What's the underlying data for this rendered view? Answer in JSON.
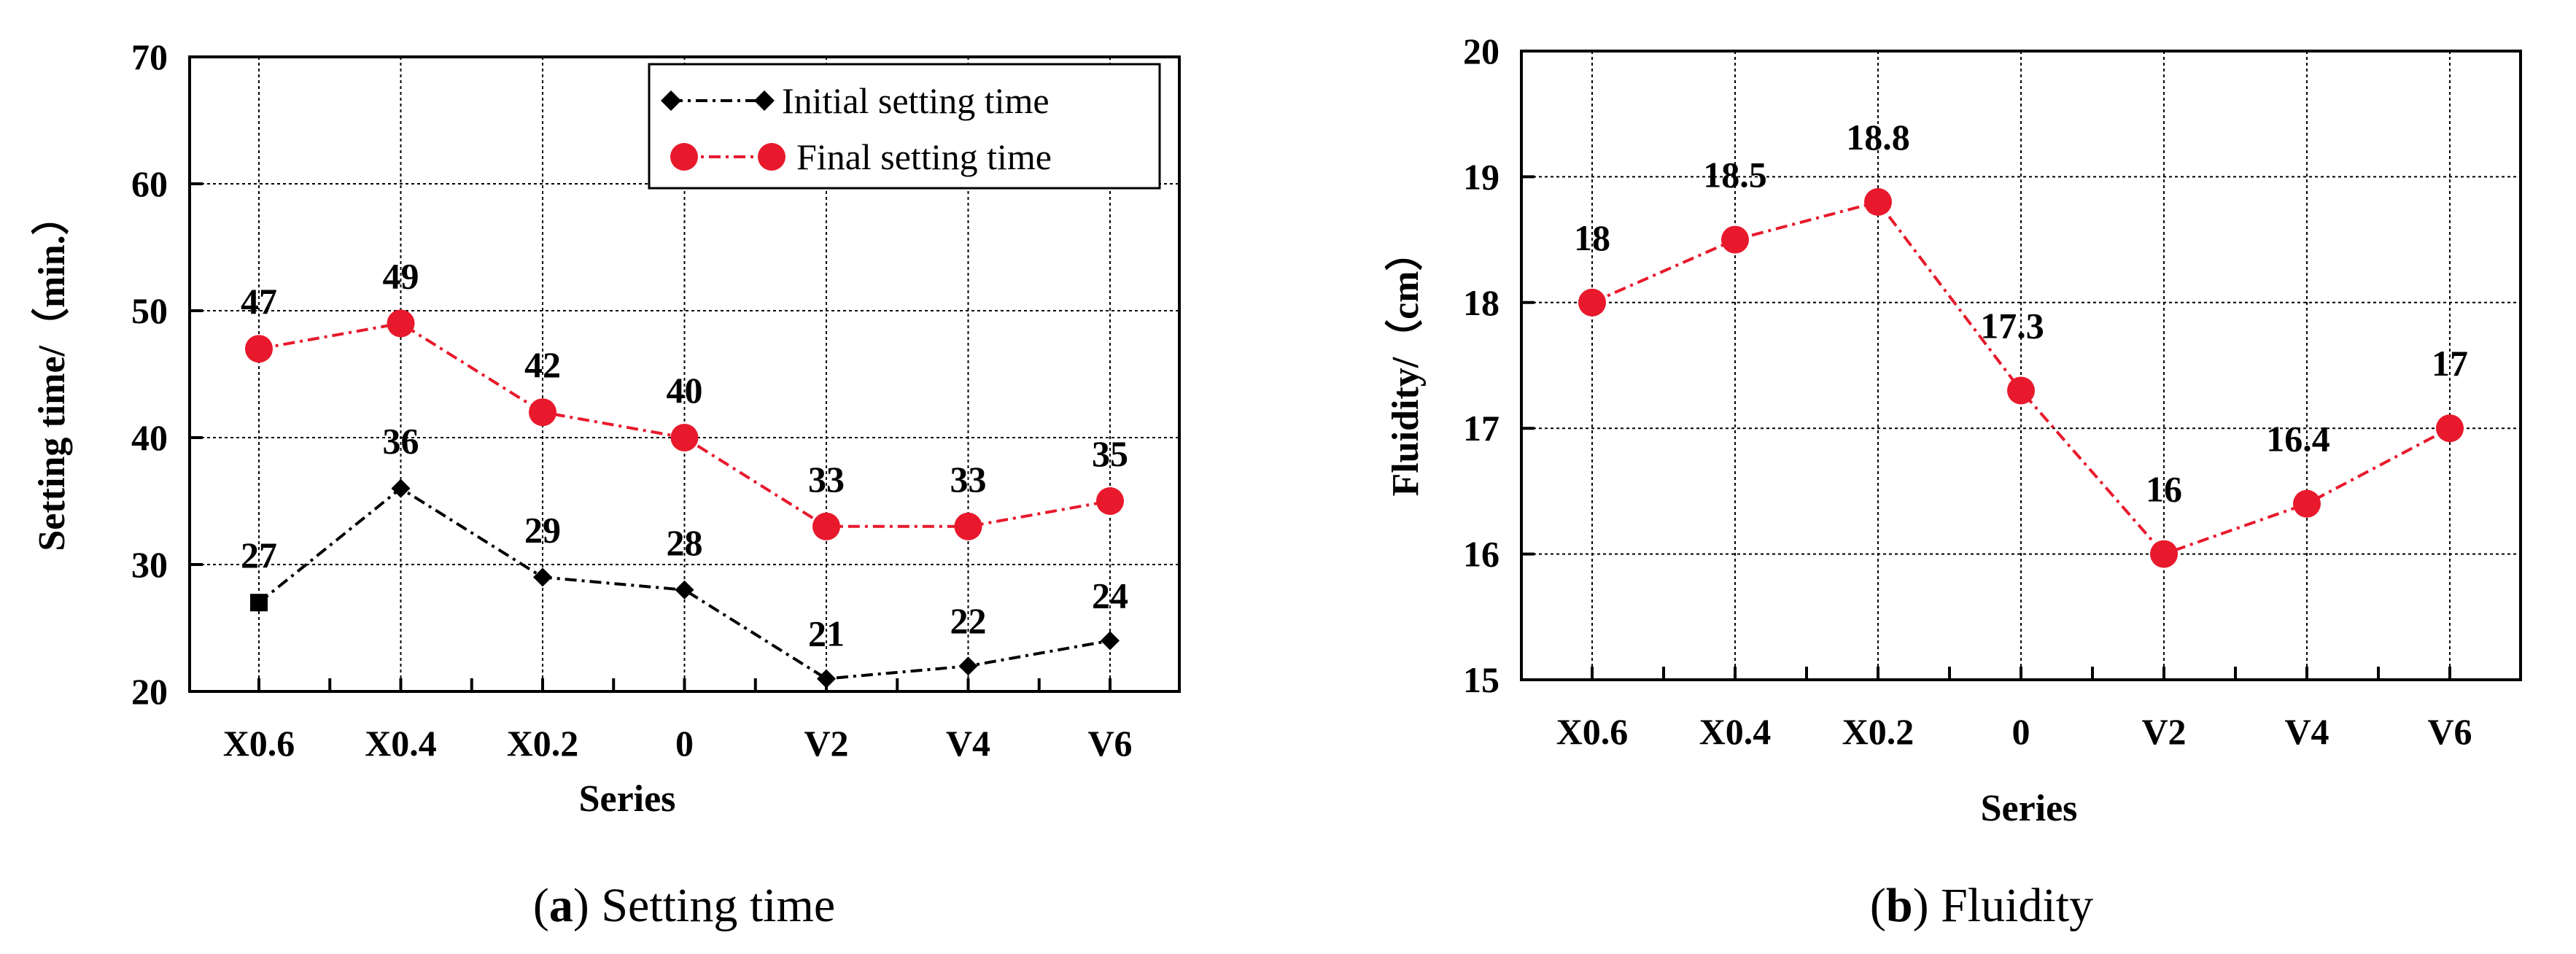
{
  "chart_data": [
    {
      "type": "line",
      "categories": [
        "X0.6",
        "X0.4",
        "X0.2",
        "0",
        "V2",
        "V4",
        "V6"
      ],
      "series": [
        {
          "name": "Initial setting time",
          "values": [
            27,
            36,
            29,
            28,
            21,
            22,
            24
          ],
          "color": "#000000",
          "marker": "diamond"
        },
        {
          "name": "Final setting time",
          "values": [
            47,
            49,
            42,
            40,
            33,
            33,
            35
          ],
          "color": "#e8192c",
          "marker": "circle"
        }
      ],
      "xlabel": "Series",
      "ylabel": "Setting time/（min.）",
      "ylim": [
        20,
        70
      ],
      "yticks": [
        20,
        30,
        40,
        50,
        60,
        70
      ],
      "grid": true,
      "legend_position": "top-right",
      "caption_letter": "a",
      "caption_text": " Setting time"
    },
    {
      "type": "line",
      "categories": [
        "X0.6",
        "X0.4",
        "X0.2",
        "0",
        "V2",
        "V4",
        "V6"
      ],
      "series": [
        {
          "values": [
            18,
            18.5,
            18.8,
            17.3,
            16,
            16.4,
            17
          ],
          "color": "#e8192c",
          "marker": "circle"
        }
      ],
      "xlabel": "Series",
      "ylabel": "Fluidity/（cm）",
      "ylim": [
        15,
        20
      ],
      "yticks": [
        15,
        16,
        17,
        18,
        19,
        20
      ],
      "grid": true,
      "caption_letter": "b",
      "caption_text": " Fluidity"
    }
  ]
}
